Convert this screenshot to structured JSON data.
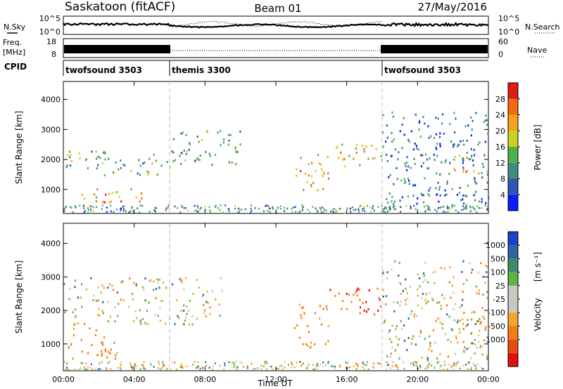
{
  "header": {
    "station": "Saskatoon (fitACF)",
    "beam": "Beam 01",
    "date": "27/May/2016"
  },
  "status_panels": {
    "nsky_label": "N.Sky",
    "nsearch_label": "N.Search",
    "freq_label_1": "Freq.",
    "freq_label_2": "[MHz]",
    "nave_label": "Nave",
    "cpid_label": "CPID",
    "noise_ticks_left": [
      "10^5",
      "10^0"
    ],
    "noise_ticks_right": [
      "10^5",
      "10^0"
    ],
    "freq_ticks_left": [
      "18",
      "8"
    ],
    "freq_ticks_right": [
      "60",
      "0"
    ],
    "cpid_segments": [
      {
        "label": "twofsound 3503",
        "start_hour": 0
      },
      {
        "label": "themis 3300",
        "start_hour": 6
      },
      {
        "label": "twofsound 3503",
        "start_hour": 18
      }
    ]
  },
  "colors": {
    "power_scale": [
      "#0a1dff",
      "#2f55b4",
      "#3e8f7e",
      "#4fb04a",
      "#c9d41a",
      "#f6a21d",
      "#f36a12",
      "#e21b12"
    ],
    "velocity_scale": [
      "#1e3fc9",
      "#2d63a6",
      "#3f8a6a",
      "#5cb44a",
      "#c8c8c0",
      "#c8c8c0",
      "#f5a623",
      "#f07d16",
      "#e84b10",
      "#e00f0f"
    ]
  },
  "chart_data": [
    {
      "type": "heatmap",
      "panel": "power",
      "ylabel": "Slant Range [km]",
      "x_ticks": [
        "00:00",
        "04:00",
        "08:00",
        "12:00",
        "16:00",
        "20:00",
        "00:00"
      ],
      "xlim_hours": [
        0,
        24
      ],
      "y_ticks": [
        "1000",
        "2000",
        "3000",
        "4000"
      ],
      "ylim_km": [
        200,
        4600
      ],
      "colorbar_label": "Power [dB]",
      "colorbar_ticks": [
        "4",
        "8",
        "12",
        "16",
        "20",
        "24",
        "28"
      ],
      "colorbar_range_db": [
        0,
        32
      ],
      "cpid_change_hours": [
        6,
        18
      ],
      "echo_bands": [
        {
          "hours": [
            0,
            6
          ],
          "km": [
            1500,
            2300
          ],
          "db": 14
        },
        {
          "hours": [
            1,
            5
          ],
          "km": [
            600,
            1100
          ],
          "db": 22
        },
        {
          "hours": [
            6,
            10
          ],
          "km": [
            1800,
            3000
          ],
          "db": 12
        },
        {
          "hours": [
            13,
            15
          ],
          "km": [
            1000,
            2200
          ],
          "db": 22
        },
        {
          "hours": [
            15,
            18
          ],
          "km": [
            1800,
            2600
          ],
          "db": 20
        },
        {
          "hours": [
            18,
            24
          ],
          "km": [
            300,
            3600
          ],
          "db": 8
        },
        {
          "hours": [
            22,
            24
          ],
          "km": [
            1500,
            2200
          ],
          "db": 18
        }
      ]
    },
    {
      "type": "heatmap",
      "panel": "velocity",
      "ylabel": "Slant Range [km]",
      "xlabel": "Time UT",
      "x_ticks": [
        "00:00",
        "04:00",
        "08:00",
        "12:00",
        "16:00",
        "20:00",
        "00:00"
      ],
      "xlim_hours": [
        0,
        24
      ],
      "y_ticks": [
        "1000",
        "2000",
        "3000",
        "4000"
      ],
      "ylim_km": [
        200,
        4600
      ],
      "colorbar_label_main": "Velocity",
      "colorbar_label_unit": "[m s⁻¹]",
      "colorbar_ticks": [
        "1000",
        "500",
        "100",
        "25",
        "-25",
        "-100",
        "-500",
        "-1000"
      ],
      "colorbar_range_ms": [
        -1000,
        1000
      ],
      "cpid_change_hours": [
        6,
        18
      ],
      "echo_bands": [
        {
          "hours": [
            0,
            9
          ],
          "km": [
            1600,
            3000
          ],
          "ms": 0
        },
        {
          "hours": [
            0,
            3
          ],
          "km": [
            500,
            1500
          ],
          "ms": -200
        },
        {
          "hours": [
            13,
            15
          ],
          "km": [
            900,
            2200
          ],
          "ms": -200
        },
        {
          "hours": [
            15,
            18
          ],
          "km": [
            1900,
            2800
          ],
          "ms": -500
        },
        {
          "hours": [
            18,
            24
          ],
          "km": [
            300,
            3500
          ],
          "ms": 0
        },
        {
          "hours": [
            22,
            24
          ],
          "km": [
            900,
            1800
          ],
          "ms": -150
        }
      ]
    }
  ]
}
